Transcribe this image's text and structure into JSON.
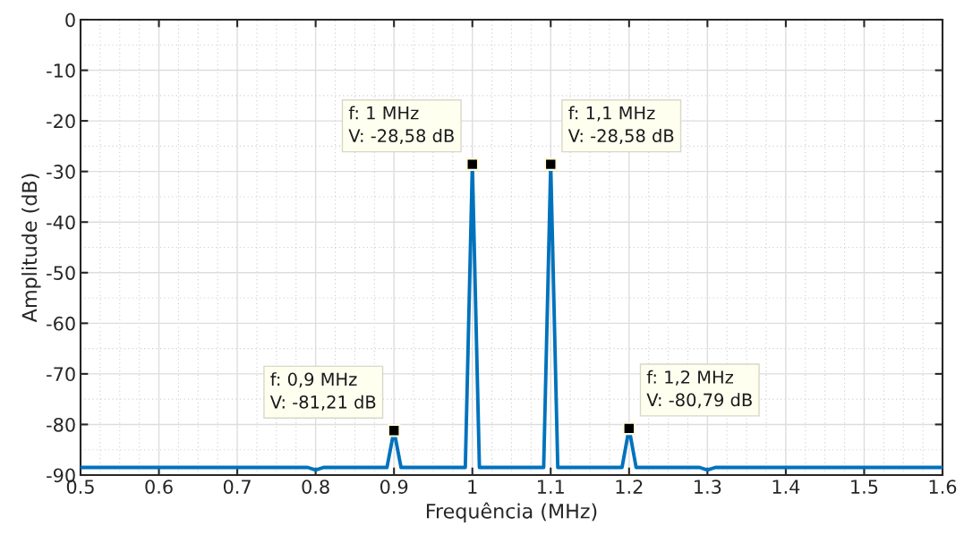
{
  "chart_data": {
    "type": "line",
    "xlabel": "Frequência (MHz)",
    "ylabel": "Amplitude (dB)",
    "x": [
      0.5,
      0.79,
      0.8,
      0.81,
      0.891,
      0.9,
      0.909,
      0.991,
      1.0,
      1.009,
      1.091,
      1.1,
      1.109,
      1.191,
      1.2,
      1.209,
      1.29,
      1.3,
      1.31,
      1.6
    ],
    "series": [
      {
        "color": "#0072bd",
        "values": [
          -88.5,
          -88.5,
          -89.0,
          -88.5,
          -88.5,
          -81.21,
          -88.5,
          -88.5,
          -28.58,
          -88.5,
          -88.5,
          -28.58,
          -88.5,
          -88.5,
          -80.79,
          -88.5,
          -88.5,
          -89.0,
          -88.5,
          -88.5
        ]
      }
    ],
    "xlim": [
      0.5,
      1.6
    ],
    "xticks": [
      0.5,
      0.6,
      0.7,
      0.8,
      0.9,
      {
        "value": 1.0,
        "label": "1"
      },
      1.1,
      1.2,
      1.3,
      1.4,
      1.5,
      1.6
    ],
    "ylim": [
      -90,
      0
    ],
    "yticks": [
      -90,
      -80,
      -70,
      -60,
      -50,
      -40,
      -30,
      -20,
      -10,
      0
    ],
    "grid": true,
    "line_style": "solid",
    "marker": "none",
    "annotations": [
      {
        "text": "f: 0,9 MHz\nV: -81,21 dB",
        "x": 0.9,
        "y": -81.21
      },
      {
        "text": "f: 1 MHz\nV: -28,58 dB",
        "x": 1.0,
        "y": -28.58
      },
      {
        "text": "f: 1,1 MHz\nV: -28,58 dB",
        "x": 1.1,
        "y": -28.58
      },
      {
        "text": "f: 1,2 MHz\nV: -80,79 dB",
        "x": 1.2,
        "y": -80.79
      }
    ]
  }
}
